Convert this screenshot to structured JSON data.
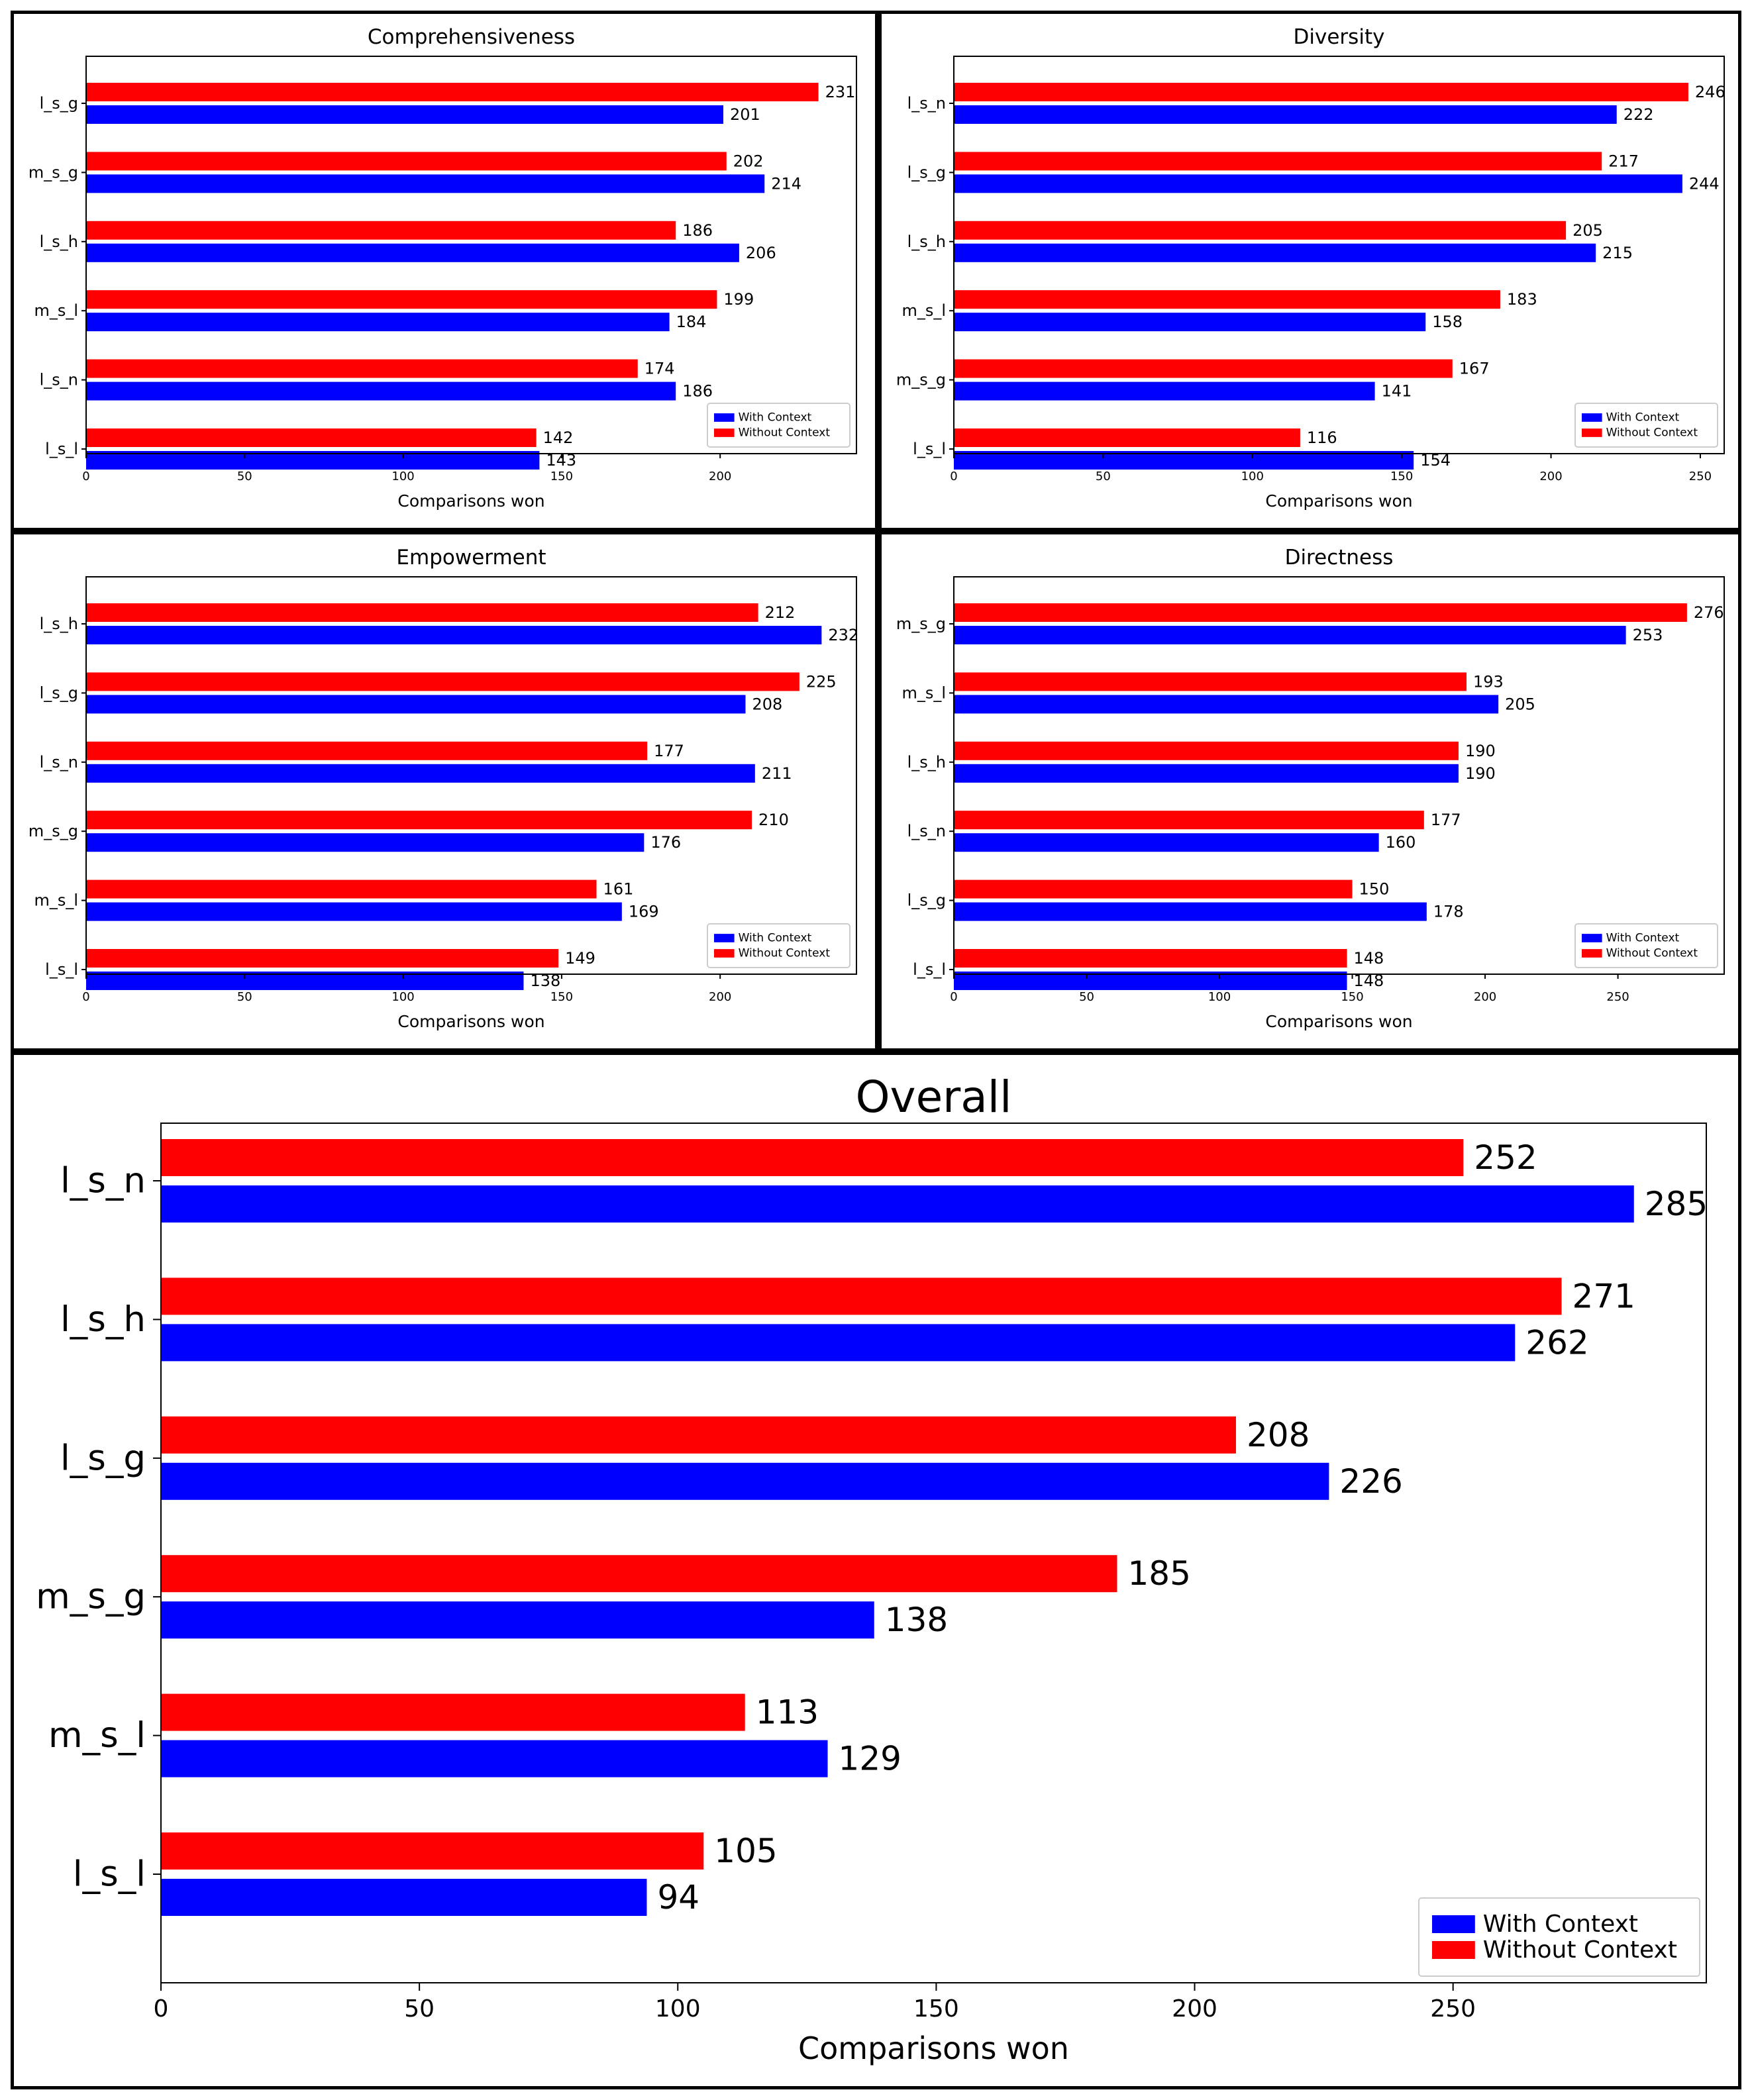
{
  "legend": {
    "with": "With Context",
    "without": "Without Context"
  },
  "colors": {
    "with": "#0000ff",
    "without": "#ff0000"
  },
  "chart_data": [
    {
      "type": "bar",
      "orientation": "horizontal",
      "title": "Comprehensiveness",
      "xlabel": "Comparisons won",
      "xlim": [
        0,
        243
      ],
      "xticks": [
        0,
        50,
        100,
        150,
        200
      ],
      "categories": [
        "l_s_g",
        "m_s_g",
        "l_s_h",
        "m_s_l",
        "l_s_n",
        "l_s_l"
      ],
      "series": [
        {
          "name": "With Context",
          "values": [
            201,
            214,
            206,
            184,
            186,
            143
          ]
        },
        {
          "name": "Without Context",
          "values": [
            231,
            202,
            186,
            199,
            174,
            142
          ]
        }
      ],
      "legend_position": "lower right"
    },
    {
      "type": "bar",
      "orientation": "horizontal",
      "title": "Diversity",
      "xlabel": "Comparisons won",
      "xlim": [
        0,
        258
      ],
      "xticks": [
        0,
        50,
        100,
        150,
        200,
        250
      ],
      "categories": [
        "l_s_n",
        "l_s_g",
        "l_s_h",
        "m_s_l",
        "m_s_g",
        "l_s_l"
      ],
      "series": [
        {
          "name": "With Context",
          "values": [
            222,
            244,
            215,
            158,
            141,
            154
          ]
        },
        {
          "name": "Without Context",
          "values": [
            246,
            217,
            205,
            183,
            167,
            116
          ]
        }
      ],
      "legend_position": "lower right"
    },
    {
      "type": "bar",
      "orientation": "horizontal",
      "title": "Empowerment",
      "xlabel": "Comparisons won",
      "xlim": [
        0,
        243
      ],
      "xticks": [
        0,
        50,
        100,
        150,
        200
      ],
      "categories": [
        "l_s_h",
        "l_s_g",
        "l_s_n",
        "m_s_g",
        "m_s_l",
        "l_s_l"
      ],
      "series": [
        {
          "name": "With Context",
          "values": [
            232,
            208,
            211,
            176,
            169,
            138
          ]
        },
        {
          "name": "Without Context",
          "values": [
            212,
            225,
            177,
            210,
            161,
            149
          ]
        }
      ],
      "legend_position": "lower right"
    },
    {
      "type": "bar",
      "orientation": "horizontal",
      "title": "Directness",
      "xlabel": "Comparisons won",
      "xlim": [
        0,
        290
      ],
      "xticks": [
        0,
        50,
        100,
        150,
        200,
        250
      ],
      "categories": [
        "m_s_g",
        "m_s_l",
        "l_s_h",
        "l_s_n",
        "l_s_g",
        "l_s_l"
      ],
      "series": [
        {
          "name": "With Context",
          "values": [
            253,
            205,
            190,
            160,
            178,
            148
          ]
        },
        {
          "name": "Without Context",
          "values": [
            276,
            193,
            190,
            177,
            150,
            148
          ]
        }
      ],
      "legend_position": "lower right"
    },
    {
      "type": "bar",
      "orientation": "horizontal",
      "title": "Overall",
      "xlabel": "Comparisons won",
      "xlim": [
        0,
        299
      ],
      "xticks": [
        0,
        50,
        100,
        150,
        200,
        250
      ],
      "categories": [
        "l_s_n",
        "l_s_h",
        "l_s_g",
        "m_s_g",
        "m_s_l",
        "l_s_l"
      ],
      "series": [
        {
          "name": "With Context",
          "values": [
            285,
            262,
            226,
            138,
            129,
            94
          ]
        },
        {
          "name": "Without Context",
          "values": [
            252,
            271,
            208,
            185,
            113,
            105
          ]
        }
      ],
      "legend_position": "lower right"
    }
  ]
}
